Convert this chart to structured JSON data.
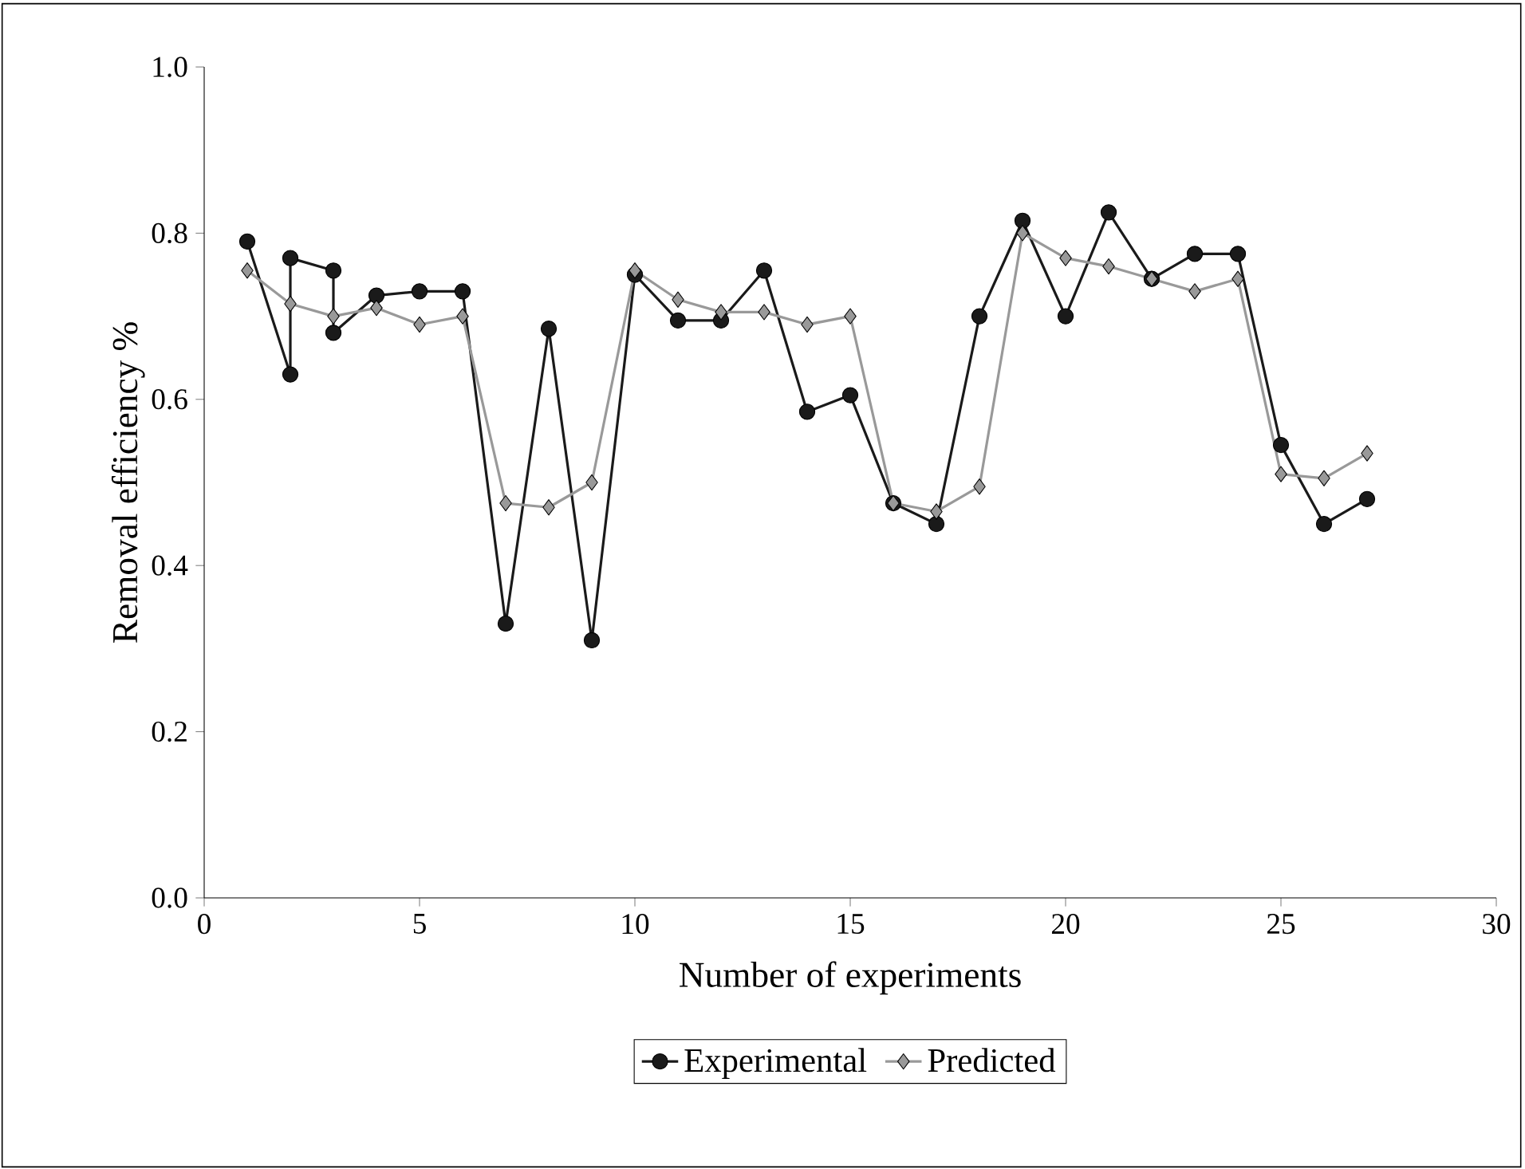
{
  "chart_data": {
    "type": "line",
    "xlabel": "Number of experiments",
    "ylabel": "Removal efficiency %",
    "xlim": [
      0,
      30
    ],
    "xticks": [
      0,
      5,
      10,
      15,
      20,
      25,
      30
    ],
    "ylim": [
      0,
      1
    ],
    "yticks": [
      {
        "value": 0,
        "label": "0.0"
      },
      {
        "value": 0.2,
        "label": "0.2"
      },
      {
        "value": 0.4,
        "label": "0.4"
      },
      {
        "value": 0.6,
        "label": "0.6"
      },
      {
        "value": 0.8,
        "label": "0.8"
      },
      {
        "value": 1,
        "label": "1.0"
      }
    ],
    "grid": false,
    "legend": "bottom",
    "series": [
      {
        "name": "Experimental",
        "color": "#1a1a1a",
        "marker": "circle",
        "x": [
          1,
          2,
          2,
          3,
          3,
          4,
          5,
          6,
          7,
          8,
          9,
          10,
          11,
          12,
          13,
          14,
          15,
          16,
          17,
          18,
          19,
          20,
          21,
          22,
          23,
          24,
          25,
          26,
          27
        ],
        "values": [
          0.79,
          0.63,
          0.77,
          0.755,
          0.68,
          0.725,
          0.73,
          0.73,
          0.33,
          0.685,
          0.31,
          0.75,
          0.695,
          0.695,
          0.755,
          0.585,
          0.605,
          0.475,
          0.45,
          0.7,
          0.815,
          0.7,
          0.825,
          0.745,
          0.775,
          0.775,
          0.545,
          0.45,
          0.48
        ]
      },
      {
        "name": "Predicted",
        "color": "#999999",
        "marker": "diamond",
        "x": [
          1,
          2,
          3,
          4,
          5,
          6,
          7,
          8,
          9,
          10,
          11,
          12,
          13,
          14,
          15,
          16,
          17,
          18,
          19,
          20,
          21,
          22,
          23,
          24,
          25,
          26,
          27
        ],
        "values": [
          0.755,
          0.715,
          0.7,
          0.71,
          0.69,
          0.7,
          0.475,
          0.47,
          0.5,
          0.755,
          0.72,
          0.705,
          0.705,
          0.69,
          0.7,
          0.475,
          0.465,
          0.495,
          0.8,
          0.77,
          0.76,
          0.745,
          0.73,
          0.745,
          0.51,
          0.505,
          0.535
        ]
      }
    ]
  }
}
